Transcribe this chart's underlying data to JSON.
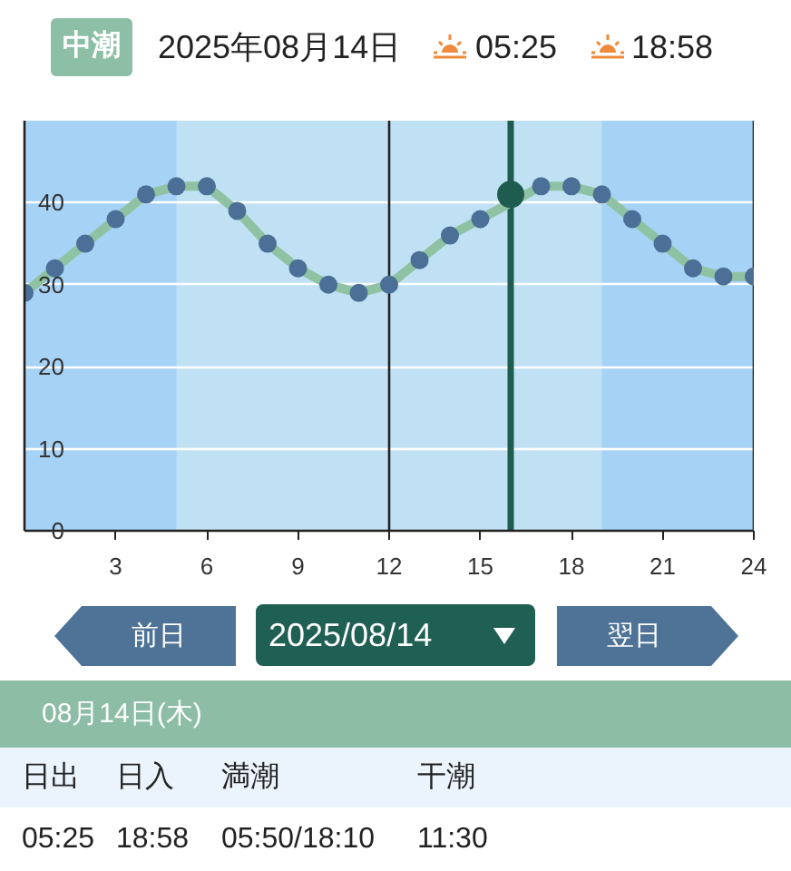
{
  "chart_data": {
    "type": "line",
    "title": "2025年08月14日",
    "annotations": [
      "中潮",
      "05:25",
      "18:58",
      "前日",
      "2025/08/14",
      "翌日",
      "08月14日(木)",
      "日出",
      "日入",
      "満潮",
      "干潮",
      "05:25",
      "18:58",
      "05:50/18:10",
      "11:30"
    ],
    "series": [
      {
        "color": "#8fc2a2",
        "x": [
          0,
          1,
          2,
          3,
          4,
          5,
          6,
          7,
          8,
          9,
          10,
          11,
          12,
          13,
          14,
          15,
          17,
          18,
          19,
          20,
          21,
          22,
          23,
          24
        ],
        "values": [
          29,
          32,
          35,
          38,
          41,
          42,
          42,
          39,
          35,
          32,
          30,
          29,
          30,
          33,
          36,
          38,
          42,
          42,
          41,
          38,
          35,
          32,
          31,
          31
        ],
        "colors": [
          "#4b6f96",
          "#4b6f96",
          "#4b6f96",
          "#4b6f96",
          "#4b6f96",
          "#4b6f96",
          "#4b6f96",
          "#4b6f96",
          "#4b6f96",
          "#4b6f96",
          "#4b6f96",
          "#4b6f96",
          "#4b6f96",
          "#4b6f96",
          "#4b6f96",
          "#4b6f96",
          "#4b6f96",
          "#4b6f96",
          "#4b6f96",
          "#4b6f96",
          "#4b6f96",
          "#4b6f96",
          "#4b6f96",
          "#4b6f96"
        ]
      },
      {
        "type": "scatter",
        "color": "#1e5c4e",
        "x": [
          16
        ],
        "values": [
          41
        ]
      }
    ],
    "xlim": [
      0,
      24
    ],
    "ylim": [
      0,
      50
    ],
    "xticks": [
      3,
      6,
      9,
      12,
      15,
      18,
      21,
      24
    ],
    "yticks": [
      0,
      10,
      20,
      30,
      40
    ],
    "grid": "y",
    "marker": "circle",
    "bands": [
      {
        "axis": "x",
        "from": 0,
        "to": 5,
        "color": "#a6d2f6"
      },
      {
        "axis": "x",
        "from": 19,
        "to": 24,
        "color": "#a6d2f6"
      }
    ],
    "ref_lines": [
      {
        "axis": "x",
        "value": 12,
        "color": "#222222"
      },
      {
        "axis": "x",
        "value": 16,
        "color": "#1e5c4e"
      },
      {
        "axis": "x",
        "value": 24,
        "color": "#222222"
      }
    ]
  }
}
